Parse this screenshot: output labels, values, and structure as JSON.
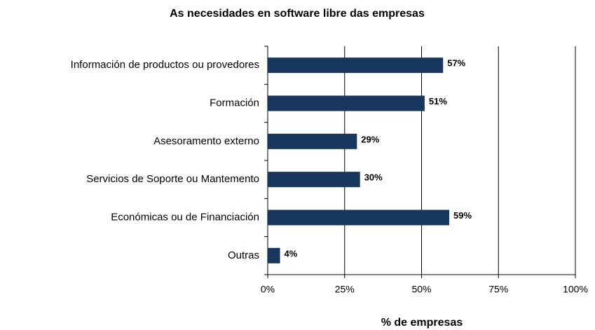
{
  "chart_data": {
    "type": "bar",
    "orientation": "horizontal",
    "title": "As necesidades en software libre das empresas",
    "x_label": "% de empresas",
    "categories": [
      "Información de productos ou provedores",
      "Formación",
      "Asesoramento externo",
      "Servicios de Soporte ou Mantemento",
      "Económicas ou de Financiación",
      "Outras"
    ],
    "values": [
      57,
      51,
      29,
      30,
      59,
      4
    ],
    "value_labels": [
      "57%",
      "51%",
      "29%",
      "30%",
      "59%",
      "4%"
    ],
    "color": "#17375e",
    "xlim": [
      0,
      100
    ],
    "xticks": [
      {
        "value": 0,
        "label": "0%"
      },
      {
        "value": 25,
        "label": "25%"
      },
      {
        "value": 50,
        "label": "50%"
      },
      {
        "value": 75,
        "label": "75%"
      },
      {
        "value": 100,
        "label": "100%"
      }
    ],
    "grid": true
  }
}
